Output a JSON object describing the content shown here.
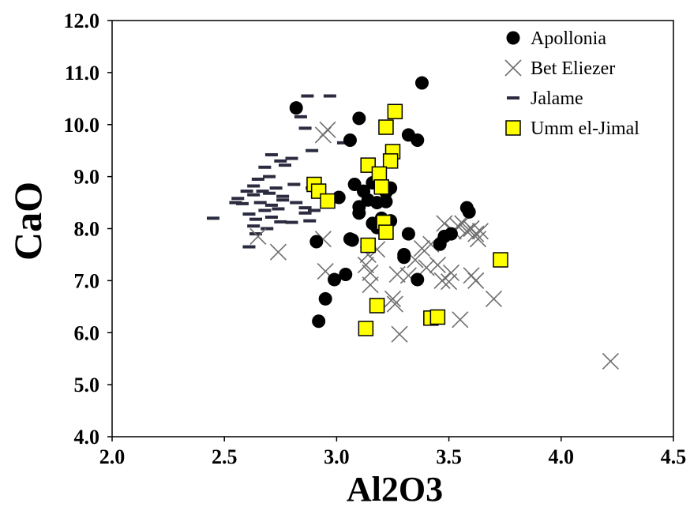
{
  "chart_data": {
    "type": "scatter",
    "xlabel": "Al2O3",
    "ylabel": "CaO",
    "xlim": [
      2.0,
      4.5
    ],
    "ylim": [
      4.0,
      12.0
    ],
    "x_ticks": [
      "2.0",
      "2.5",
      "3.0",
      "3.5",
      "4.0",
      "4.5"
    ],
    "y_ticks": [
      "4.0",
      "5.0",
      "6.0",
      "7.0",
      "8.0",
      "9.0",
      "10.0",
      "11.0",
      "12.0"
    ],
    "grid": false,
    "legend_position": "top-right",
    "series": [
      {
        "name": "Apollonia",
        "marker": "circle",
        "color": "#000000",
        "points": [
          [
            2.82,
            10.32
          ],
          [
            3.38,
            10.8
          ],
          [
            3.1,
            10.12
          ],
          [
            3.06,
            9.7
          ],
          [
            3.32,
            9.8
          ],
          [
            3.36,
            9.7
          ],
          [
            3.08,
            8.85
          ],
          [
            3.12,
            8.72
          ],
          [
            3.14,
            8.55
          ],
          [
            3.1,
            8.42
          ],
          [
            3.18,
            8.5
          ],
          [
            3.16,
            8.88
          ],
          [
            3.22,
            8.7
          ],
          [
            3.24,
            8.78
          ],
          [
            3.22,
            8.52
          ],
          [
            3.1,
            8.3
          ],
          [
            3.2,
            8.2
          ],
          [
            3.24,
            8.15
          ],
          [
            3.18,
            8.02
          ],
          [
            3.16,
            8.1
          ],
          [
            3.01,
            8.6
          ],
          [
            3.58,
            8.4
          ],
          [
            3.59,
            8.32
          ],
          [
            3.32,
            7.9
          ],
          [
            3.48,
            7.85
          ],
          [
            3.51,
            7.9
          ],
          [
            3.46,
            7.7
          ],
          [
            3.3,
            7.45
          ],
          [
            3.3,
            7.5
          ],
          [
            3.36,
            7.02
          ],
          [
            2.91,
            7.75
          ],
          [
            3.06,
            7.8
          ],
          [
            3.07,
            7.78
          ],
          [
            3.04,
            7.12
          ],
          [
            2.99,
            7.02
          ],
          [
            2.95,
            6.65
          ],
          [
            2.92,
            6.22
          ]
        ]
      },
      {
        "name": "Bet Eliezer",
        "marker": "x",
        "color": "#6e6e6e",
        "points": [
          [
            2.96,
            9.9
          ],
          [
            2.94,
            9.8
          ],
          [
            2.65,
            7.85
          ],
          [
            2.74,
            7.55
          ],
          [
            2.94,
            7.8
          ],
          [
            2.95,
            7.18
          ],
          [
            3.13,
            7.3
          ],
          [
            3.15,
            7.15
          ],
          [
            3.18,
            7.6
          ],
          [
            3.14,
            7.5
          ],
          [
            3.27,
            7.12
          ],
          [
            3.26,
            6.55
          ],
          [
            3.25,
            6.65
          ],
          [
            3.32,
            7.1
          ],
          [
            3.28,
            5.97
          ],
          [
            3.38,
            7.62
          ],
          [
            3.4,
            7.25
          ],
          [
            3.42,
            7.7
          ],
          [
            3.45,
            7.3
          ],
          [
            3.47,
            7.0
          ],
          [
            3.48,
            8.1
          ],
          [
            3.5,
            6.98
          ],
          [
            3.51,
            7.15
          ],
          [
            3.52,
            7.95
          ],
          [
            3.54,
            8.05
          ],
          [
            3.56,
            8.1
          ],
          [
            3.58,
            7.95
          ],
          [
            3.6,
            8.0
          ],
          [
            3.62,
            7.9
          ],
          [
            3.63,
            7.8
          ],
          [
            3.6,
            7.1
          ],
          [
            3.62,
            7.0
          ],
          [
            3.64,
            7.95
          ],
          [
            3.55,
            6.25
          ],
          [
            3.7,
            6.65
          ],
          [
            4.22,
            5.45
          ],
          [
            3.15,
            6.92
          ],
          [
            3.35,
            7.4
          ]
        ]
      },
      {
        "name": "Jalame",
        "marker": "dash",
        "color": "#2b2b40",
        "points": [
          [
            2.87,
            10.55
          ],
          [
            2.97,
            10.55
          ],
          [
            2.84,
            10.15
          ],
          [
            2.86,
            9.93
          ],
          [
            3.03,
            9.65
          ],
          [
            2.89,
            9.5
          ],
          [
            2.71,
            9.42
          ],
          [
            2.75,
            9.3
          ],
          [
            2.77,
            9.22
          ],
          [
            2.8,
            9.35
          ],
          [
            2.68,
            9.18
          ],
          [
            2.7,
            9.0
          ],
          [
            2.65,
            8.95
          ],
          [
            2.63,
            8.82
          ],
          [
            2.6,
            8.72
          ],
          [
            2.73,
            8.78
          ],
          [
            2.81,
            8.85
          ],
          [
            2.89,
            8.78
          ],
          [
            2.56,
            8.58
          ],
          [
            2.63,
            8.65
          ],
          [
            2.7,
            8.68
          ],
          [
            2.58,
            8.48
          ],
          [
            2.66,
            8.5
          ],
          [
            2.71,
            8.45
          ],
          [
            2.76,
            8.55
          ],
          [
            2.82,
            8.5
          ],
          [
            2.86,
            8.4
          ],
          [
            2.74,
            8.38
          ],
          [
            2.68,
            8.35
          ],
          [
            2.61,
            8.28
          ],
          [
            2.45,
            8.2
          ],
          [
            2.64,
            8.18
          ],
          [
            2.71,
            8.22
          ],
          [
            2.75,
            8.13
          ],
          [
            2.8,
            8.12
          ],
          [
            2.86,
            8.3
          ],
          [
            2.9,
            8.35
          ],
          [
            2.63,
            8.05
          ],
          [
            2.69,
            8.0
          ],
          [
            2.61,
            7.65
          ],
          [
            2.64,
            7.9
          ],
          [
            2.88,
            8.15
          ],
          [
            2.76,
            8.62
          ],
          [
            2.55,
            8.5
          ],
          [
            2.67,
            8.72
          ]
        ]
      },
      {
        "name": "Umm el-Jimal",
        "marker": "square",
        "color": "#ffff00",
        "points": [
          [
            3.26,
            10.25
          ],
          [
            3.22,
            9.95
          ],
          [
            3.25,
            9.48
          ],
          [
            3.24,
            9.3
          ],
          [
            3.14,
            9.22
          ],
          [
            3.19,
            9.05
          ],
          [
            3.2,
            8.8
          ],
          [
            2.9,
            8.85
          ],
          [
            2.92,
            8.72
          ],
          [
            2.96,
            8.53
          ],
          [
            3.21,
            8.12
          ],
          [
            3.22,
            7.93
          ],
          [
            3.14,
            7.68
          ],
          [
            3.18,
            6.52
          ],
          [
            3.13,
            6.08
          ],
          [
            3.42,
            6.28
          ],
          [
            3.45,
            6.3
          ],
          [
            3.73,
            7.4
          ]
        ]
      }
    ]
  }
}
